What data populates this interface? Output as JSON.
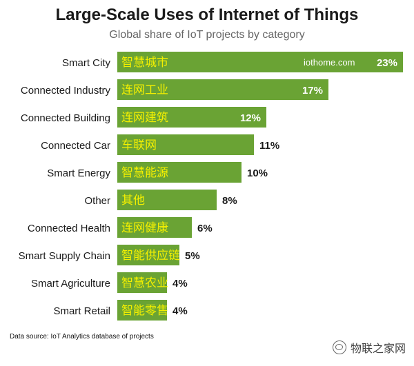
{
  "chart_data": {
    "type": "bar",
    "orientation": "horizontal",
    "title": "Large-Scale Uses of Internet of Things",
    "subtitle": "Global share of IoT projects by category",
    "categories": [
      "Smart City",
      "Connected Industry",
      "Connected Building",
      "Connected Car",
      "Smart Energy",
      "Other",
      "Connected Health",
      "Smart Supply Chain",
      "Smart Agriculture",
      "Smart Retail"
    ],
    "bar_labels_cn": [
      "智慧城市",
      "连网工业",
      "连网建筑",
      "车联网",
      "智慧能源",
      "其他",
      "连网健康",
      "智能供应链",
      "智慧农业",
      "智能零售"
    ],
    "values": [
      23,
      17,
      12,
      11,
      10,
      8,
      6,
      5,
      4,
      4
    ],
    "value_labels": [
      "23%",
      "17%",
      "12%",
      "11%",
      "10%",
      "8%",
      "6%",
      "5%",
      "4%",
      "4%"
    ],
    "xlim": [
      0,
      23
    ],
    "bar_color": "#6aa334",
    "cn_label_color": "#f4f000",
    "watermark_in_bar": "iothome.com",
    "grid": false,
    "legend": "none"
  },
  "footer": {
    "source": "Data source: IoT Analytics database of projects",
    "watermark": "物联之家网"
  }
}
